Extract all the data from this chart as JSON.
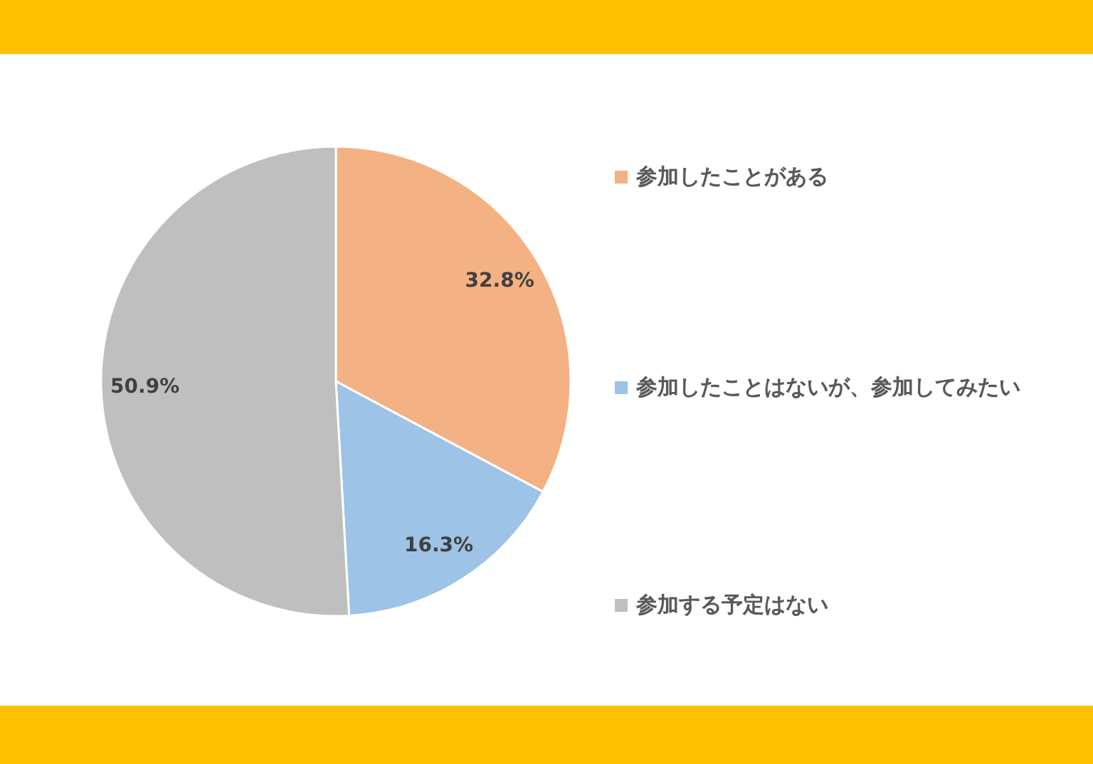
{
  "chart_data": {
    "type": "pie",
    "categories": [
      "参加したことがある",
      "参加したことはないが、参加してみたい",
      "参加する予定はない"
    ],
    "values": [
      32.8,
      16.3,
      50.9
    ],
    "colors": [
      "#f4b183",
      "#9dc3e6",
      "#bfbfbf"
    ],
    "value_labels": [
      "32.8%",
      "16.3%",
      "50.9%"
    ],
    "legend": "right"
  }
}
